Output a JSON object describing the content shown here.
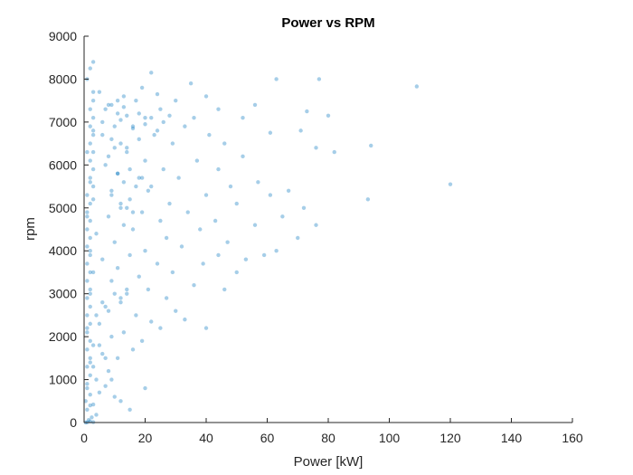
{
  "chart_data": {
    "type": "scatter",
    "title": "Power vs RPM",
    "xlabel": "Power [kW]",
    "ylabel": "rpm",
    "xlim": [
      0,
      160
    ],
    "ylim": [
      0,
      9000
    ],
    "x_ticks": [
      "0",
      "20",
      "40",
      "60",
      "80",
      "100",
      "120",
      "140",
      "160"
    ],
    "y_ticks": [
      "0",
      "1000",
      "2000",
      "3000",
      "4000",
      "5000",
      "6000",
      "7000",
      "8000",
      "9000"
    ],
    "grid": false,
    "legend": "none",
    "marker_color": "#0072BD",
    "series": [
      {
        "points": [
          [
            1,
            5
          ],
          [
            2,
            25
          ],
          [
            3,
            10
          ],
          [
            0.5,
            0
          ],
          [
            1.5,
            60
          ],
          [
            2.5,
            120
          ],
          [
            4,
            180
          ],
          [
            1,
            300
          ],
          [
            3,
            420
          ],
          [
            0.5,
            500
          ],
          [
            2,
            650
          ],
          [
            5,
            700
          ],
          [
            1,
            900
          ],
          [
            7,
            850
          ],
          [
            10,
            600
          ],
          [
            12,
            500
          ],
          [
            15,
            300
          ],
          [
            20,
            800
          ],
          [
            4,
            1000
          ],
          [
            8,
            1200
          ],
          [
            2,
            1400
          ],
          [
            11,
            1500
          ],
          [
            6,
            1600
          ],
          [
            16,
            1700
          ],
          [
            3,
            1800
          ],
          [
            19,
            1900
          ],
          [
            9,
            2000
          ],
          [
            13,
            2100
          ],
          [
            1,
            2200
          ],
          [
            25,
            2200
          ],
          [
            5,
            2300
          ],
          [
            22,
            2350
          ],
          [
            17,
            2500
          ],
          [
            33,
            2400
          ],
          [
            30,
            2600
          ],
          [
            7,
            2700
          ],
          [
            12,
            2800
          ],
          [
            27,
            2900
          ],
          [
            40,
            2200
          ],
          [
            2,
            3000
          ],
          [
            14,
            3000
          ],
          [
            21,
            3100
          ],
          [
            36,
            3200
          ],
          [
            46,
            3100
          ],
          [
            9,
            3300
          ],
          [
            18,
            3400
          ],
          [
            29,
            3500
          ],
          [
            3,
            3500
          ],
          [
            50,
            3500
          ],
          [
            11,
            3600
          ],
          [
            24,
            3700
          ],
          [
            39,
            3700
          ],
          [
            6,
            3800
          ],
          [
            15,
            3900
          ],
          [
            44,
            3900
          ],
          [
            53,
            3800
          ],
          [
            2,
            4000
          ],
          [
            20,
            4000
          ],
          [
            32,
            4100
          ],
          [
            59,
            3900
          ],
          [
            10,
            4200
          ],
          [
            27,
            4300
          ],
          [
            47,
            4200
          ],
          [
            63,
            4000
          ],
          [
            4,
            4400
          ],
          [
            16,
            4500
          ],
          [
            38,
            4500
          ],
          [
            70,
            4300
          ],
          [
            13,
            4600
          ],
          [
            25,
            4700
          ],
          [
            43,
            4700
          ],
          [
            56,
            4600
          ],
          [
            76,
            4600
          ],
          [
            1,
            4800
          ],
          [
            8,
            4800
          ],
          [
            19,
            4900
          ],
          [
            34,
            4900
          ],
          [
            65,
            4800
          ],
          [
            12,
            5000
          ],
          [
            28,
            5100
          ],
          [
            50,
            5100
          ],
          [
            72,
            5000
          ],
          [
            3,
            5200
          ],
          [
            15,
            5200
          ],
          [
            40,
            5300
          ],
          [
            61,
            5300
          ],
          [
            93,
            5200
          ],
          [
            9,
            5400
          ],
          [
            22,
            5500
          ],
          [
            48,
            5500
          ],
          [
            67,
            5400
          ],
          [
            2,
            5600
          ],
          [
            18,
            5700
          ],
          [
            31,
            5700
          ],
          [
            57,
            5600
          ],
          [
            120,
            5550
          ],
          [
            11,
            5800
          ],
          [
            26,
            5900
          ],
          [
            44,
            5900
          ],
          [
            7,
            6000
          ],
          [
            20,
            6100
          ],
          [
            37,
            6100
          ],
          [
            52,
            6200
          ],
          [
            82,
            6300
          ],
          [
            1,
            6300
          ],
          [
            14,
            6400
          ],
          [
            29,
            6500
          ],
          [
            46,
            6500
          ],
          [
            76,
            6400
          ],
          [
            94,
            6450
          ],
          [
            9,
            6600
          ],
          [
            23,
            6700
          ],
          [
            41,
            6700
          ],
          [
            61,
            6750
          ],
          [
            3,
            6800
          ],
          [
            16,
            6900
          ],
          [
            33,
            6900
          ],
          [
            71,
            6800
          ],
          [
            6,
            7000
          ],
          [
            20,
            7100
          ],
          [
            36,
            7100
          ],
          [
            52,
            7100
          ],
          [
            80,
            7150
          ],
          [
            11,
            7200
          ],
          [
            25,
            7300
          ],
          [
            44,
            7300
          ],
          [
            73,
            7250
          ],
          [
            8,
            7400
          ],
          [
            17,
            7500
          ],
          [
            30,
            7500
          ],
          [
            56,
            7400
          ],
          [
            13,
            7600
          ],
          [
            24,
            7650
          ],
          [
            40,
            7600
          ],
          [
            5,
            7700
          ],
          [
            19,
            7800
          ],
          [
            35,
            7900
          ],
          [
            63,
            8000
          ],
          [
            77,
            8000
          ],
          [
            22,
            8150
          ],
          [
            109,
            7830
          ],
          [
            3,
            8400
          ],
          [
            2,
            8250
          ],
          [
            1,
            8000
          ],
          [
            3,
            7700
          ],
          [
            3,
            7500
          ],
          [
            2,
            7300
          ],
          [
            3,
            7100
          ],
          [
            2,
            6900
          ],
          [
            3,
            6700
          ],
          [
            2,
            6500
          ],
          [
            3,
            6300
          ],
          [
            2,
            6100
          ],
          [
            3,
            5900
          ],
          [
            2,
            5700
          ],
          [
            3,
            5500
          ],
          [
            1,
            5300
          ],
          [
            2,
            5100
          ],
          [
            1,
            4900
          ],
          [
            2,
            4700
          ],
          [
            1,
            4500
          ],
          [
            2,
            4300
          ],
          [
            1,
            4100
          ],
          [
            2,
            3900
          ],
          [
            1,
            3700
          ],
          [
            2,
            3500
          ],
          [
            1,
            3300
          ],
          [
            2,
            3100
          ],
          [
            1,
            2900
          ],
          [
            2,
            2700
          ],
          [
            1,
            2500
          ],
          [
            2,
            2300
          ],
          [
            1,
            2100
          ],
          [
            2,
            1900
          ],
          [
            1,
            1700
          ],
          [
            2,
            1500
          ],
          [
            1,
            1300
          ],
          [
            2,
            1100
          ],
          [
            1,
            800
          ],
          [
            2,
            400
          ],
          [
            10,
            6900
          ],
          [
            12,
            7050
          ],
          [
            14,
            7150
          ],
          [
            16,
            6850
          ],
          [
            18,
            7200
          ],
          [
            20,
            6950
          ],
          [
            22,
            7100
          ],
          [
            24,
            6800
          ],
          [
            26,
            7000
          ],
          [
            28,
            7150
          ],
          [
            11,
            5800
          ],
          [
            13,
            5600
          ],
          [
            15,
            5900
          ],
          [
            17,
            5500
          ],
          [
            19,
            5700
          ],
          [
            21,
            5400
          ],
          [
            9,
            5300
          ],
          [
            12,
            5100
          ],
          [
            14,
            5000
          ],
          [
            16,
            4900
          ],
          [
            8,
            6200
          ],
          [
            10,
            6400
          ],
          [
            12,
            6500
          ],
          [
            14,
            6300
          ],
          [
            18,
            6600
          ],
          [
            6,
            6700
          ],
          [
            7,
            7300
          ],
          [
            9,
            7400
          ],
          [
            11,
            7500
          ],
          [
            13,
            7350
          ],
          [
            10,
            3000
          ],
          [
            12,
            2900
          ],
          [
            14,
            3100
          ],
          [
            6,
            2800
          ],
          [
            8,
            2600
          ],
          [
            4,
            2500
          ],
          [
            5,
            1800
          ],
          [
            7,
            1500
          ],
          [
            3,
            1300
          ],
          [
            9,
            1000
          ]
        ]
      }
    ]
  }
}
